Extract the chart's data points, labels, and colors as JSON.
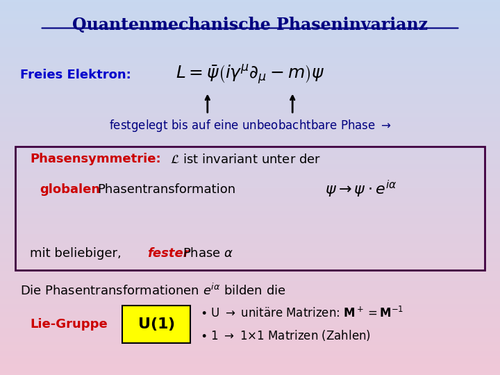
{
  "title": "Quantenmechanische Phaseninvarianz",
  "bg_top_color": "#c8d8f0",
  "bg_bottom_color": "#f0c8d8",
  "title_color": "#000080",
  "title_underline": true,
  "freies_label": "Freies Elektron:",
  "freies_color": "#0000cc",
  "lagrangian": "L = \\bar{\\psi}\\left(i\\gamma^{\\mu}\\partial_{\\mu} - m\\right)\\psi",
  "arrow_text": "festgelegt bis auf eine unbeobachtbare Phase $\\rightarrow$",
  "arrow_text_color": "#000080",
  "box_line_color": "#400040",
  "phasensym_label": "Phasensymmetrie:",
  "phasensym_color": "#cc0000",
  "phasensym_text": " $\\mathcal{L}$ ist invariant unter der",
  "phasensym_text_color": "#000000",
  "globalen_label": "globalen",
  "globalen_color": "#cc0000",
  "globalen_text": " Phasentransformation",
  "globalen_text_color": "#000000",
  "transform_eq": "$\\psi \\rightarrow \\psi \\cdot e^{i\\alpha}$",
  "mit_text1": "mit beliebiger, ",
  "fester_label": "fester",
  "fester_color": "#cc0000",
  "mit_text2": " Phase $\\alpha$",
  "die_text": "Die Phasentransformationen $e^{i\\alpha}$ bilden die",
  "die_color": "#000000",
  "lie_label": "Lie-Gruppe",
  "lie_color": "#cc0000",
  "u1_bg": "#ffff00",
  "u1_text": "$\\mathbf{U(1)}$",
  "bullet1": "$\\bullet$ U $\\rightarrow$ unitäre Matrizen: $\\mathbf{M}^+ = \\mathbf{M}^{-1}$",
  "bullet2": "$\\bullet$ 1 $\\rightarrow$ 1$\\times$1 Matrizen (Zahlen)",
  "bullets_color": "#000000"
}
